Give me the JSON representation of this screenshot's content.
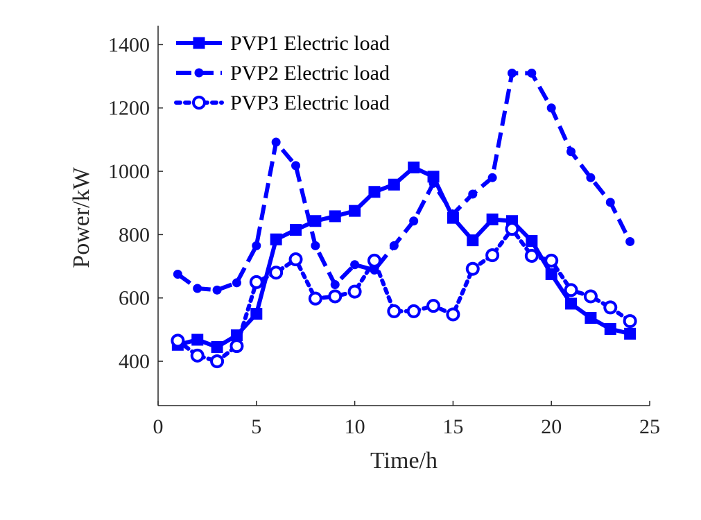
{
  "chart_data": {
    "type": "line",
    "title": "",
    "xlabel": "Time/h",
    "ylabel": "Power/kW",
    "xlim": [
      0,
      25
    ],
    "ylim": [
      260,
      1460
    ],
    "xticks": [
      0,
      5,
      10,
      15,
      20,
      25
    ],
    "yticks": [
      400,
      600,
      800,
      1000,
      1200,
      1400
    ],
    "grid": false,
    "legend_position": "top-left",
    "x": [
      1,
      2,
      3,
      4,
      5,
      6,
      7,
      8,
      9,
      10,
      11,
      12,
      13,
      14,
      15,
      16,
      17,
      18,
      19,
      20,
      21,
      22,
      23,
      24
    ],
    "series": [
      {
        "name": "PVP1 Electric load",
        "color": "#0000ff",
        "line_style": "solid",
        "marker": "square",
        "values": [
          452,
          468,
          445,
          482,
          550,
          785,
          815,
          843,
          858,
          875,
          935,
          958,
          1012,
          983,
          853,
          782,
          848,
          843,
          780,
          675,
          582,
          537,
          502,
          487
        ]
      },
      {
        "name": "PVP2 Electric load",
        "color": "#0000ff",
        "line_style": "dashed",
        "marker": "dot",
        "values": [
          675,
          630,
          625,
          648,
          765,
          1092,
          1018,
          765,
          642,
          705,
          688,
          765,
          843,
          962,
          865,
          928,
          980,
          1310,
          1310,
          1200,
          1062,
          980,
          902,
          778
        ]
      },
      {
        "name": "PVP3 Electric load",
        "color": "#0000ff",
        "line_style": "dotted",
        "marker": "circle",
        "values": [
          465,
          418,
          400,
          448,
          650,
          680,
          722,
          598,
          605,
          620,
          718,
          558,
          558,
          575,
          548,
          692,
          735,
          818,
          733,
          718,
          625,
          605,
          570,
          527
        ]
      }
    ]
  }
}
